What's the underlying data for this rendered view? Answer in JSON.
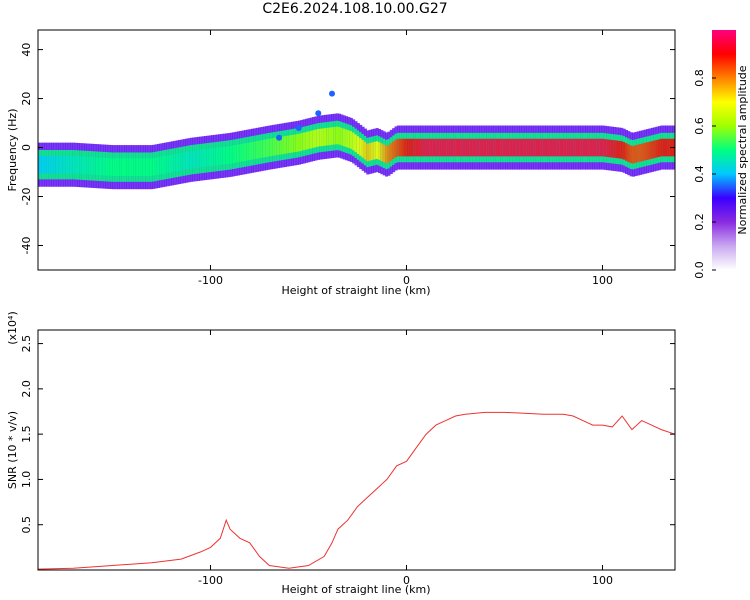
{
  "title": "C2E6.2024.108.10.00.G27",
  "chart_data": [
    {
      "type": "heatmap",
      "name": "spectrogram",
      "xlabel": "Height of straight line (km)",
      "ylabel": "Frequency (Hz)",
      "xlim": [
        -188,
        137
      ],
      "ylim": [
        -50,
        48
      ],
      "xticks": [
        -100,
        0,
        100
      ],
      "xtick_labels": [
        "-100",
        "0",
        "100"
      ],
      "yticks": [
        -40,
        -20,
        0,
        20,
        40
      ],
      "ytick_labels": [
        "-40",
        "-20",
        "0",
        "20",
        "40"
      ],
      "colorbar": {
        "label": "Normalized spectral amplitude",
        "range": [
          0.0,
          1.0
        ],
        "ticks": [
          0.0,
          0.2,
          0.4,
          0.6,
          0.8
        ],
        "tick_labels": [
          "0.0",
          "0.2",
          "0.4",
          "0.6",
          "0.8"
        ],
        "colors": [
          "#ffffff",
          "#c9a8f0",
          "#8a2be2",
          "#3a00ff",
          "#00c8ff",
          "#00ff80",
          "#a0ff00",
          "#ffff00",
          "#ff8000",
          "#ff0000",
          "#ff0080"
        ]
      },
      "ridge": {
        "x": [
          -188,
          -170,
          -150,
          -130,
          -110,
          -90,
          -70,
          -55,
          -45,
          -35,
          -28,
          -20,
          -15,
          -10,
          -5,
          0,
          10,
          50,
          90,
          100,
          110,
          115,
          120,
          130,
          137
        ],
        "y": [
          -7,
          -7,
          -8,
          -8,
          -5,
          -3,
          0,
          2,
          4,
          5,
          3,
          -2,
          -1,
          -3,
          0,
          0,
          0,
          0,
          0,
          0,
          -1,
          -3,
          -2,
          0,
          0
        ],
        "amplitude": [
          0.4,
          0.45,
          0.5,
          0.5,
          0.45,
          0.5,
          0.55,
          0.6,
          0.65,
          0.6,
          0.65,
          0.75,
          0.7,
          0.8,
          0.85,
          0.9,
          0.95,
          0.95,
          0.95,
          0.95,
          0.9,
          0.85,
          0.85,
          0.9,
          0.9
        ]
      },
      "secondary_track": {
        "x": [
          -65,
          -55,
          -45,
          -38
        ],
        "y": [
          4,
          8,
          14,
          22
        ]
      }
    },
    {
      "type": "line",
      "name": "snr",
      "xlabel": "Height of straight line (km)",
      "ylabel": "SNR (10 * v/v)",
      "y_multiplier": "(x10⁴)",
      "xlim": [
        -188,
        137
      ],
      "ylim": [
        0,
        2.65
      ],
      "xticks": [
        -100,
        0,
        100
      ],
      "xtick_labels": [
        "-100",
        "0",
        "100"
      ],
      "yticks": [
        0.5,
        1.0,
        1.5,
        2.0,
        2.5
      ],
      "ytick_labels": [
        "0.5",
        "1.0",
        "1.5",
        "2.0",
        "2.5"
      ],
      "series": [
        {
          "color": "#ee3333",
          "x": [
            -188,
            -170,
            -150,
            -130,
            -115,
            -105,
            -100,
            -95,
            -92,
            -90,
            -85,
            -80,
            -75,
            -70,
            -60,
            -50,
            -42,
            -38,
            -35,
            -30,
            -25,
            -20,
            -15,
            -10,
            -5,
            0,
            5,
            10,
            15,
            20,
            25,
            30,
            40,
            50,
            60,
            70,
            80,
            85,
            90,
            95,
            100,
            105,
            110,
            115,
            120,
            125,
            130,
            137
          ],
          "y": [
            0.01,
            0.02,
            0.05,
            0.08,
            0.12,
            0.2,
            0.25,
            0.35,
            0.55,
            0.45,
            0.35,
            0.3,
            0.15,
            0.05,
            0.02,
            0.05,
            0.15,
            0.3,
            0.45,
            0.55,
            0.7,
            0.8,
            0.9,
            1.0,
            1.15,
            1.2,
            1.35,
            1.5,
            1.6,
            1.65,
            1.7,
            1.72,
            1.74,
            1.74,
            1.73,
            1.72,
            1.72,
            1.7,
            1.65,
            1.6,
            1.6,
            1.58,
            1.7,
            1.55,
            1.65,
            1.6,
            1.55,
            1.5
          ]
        }
      ]
    }
  ]
}
